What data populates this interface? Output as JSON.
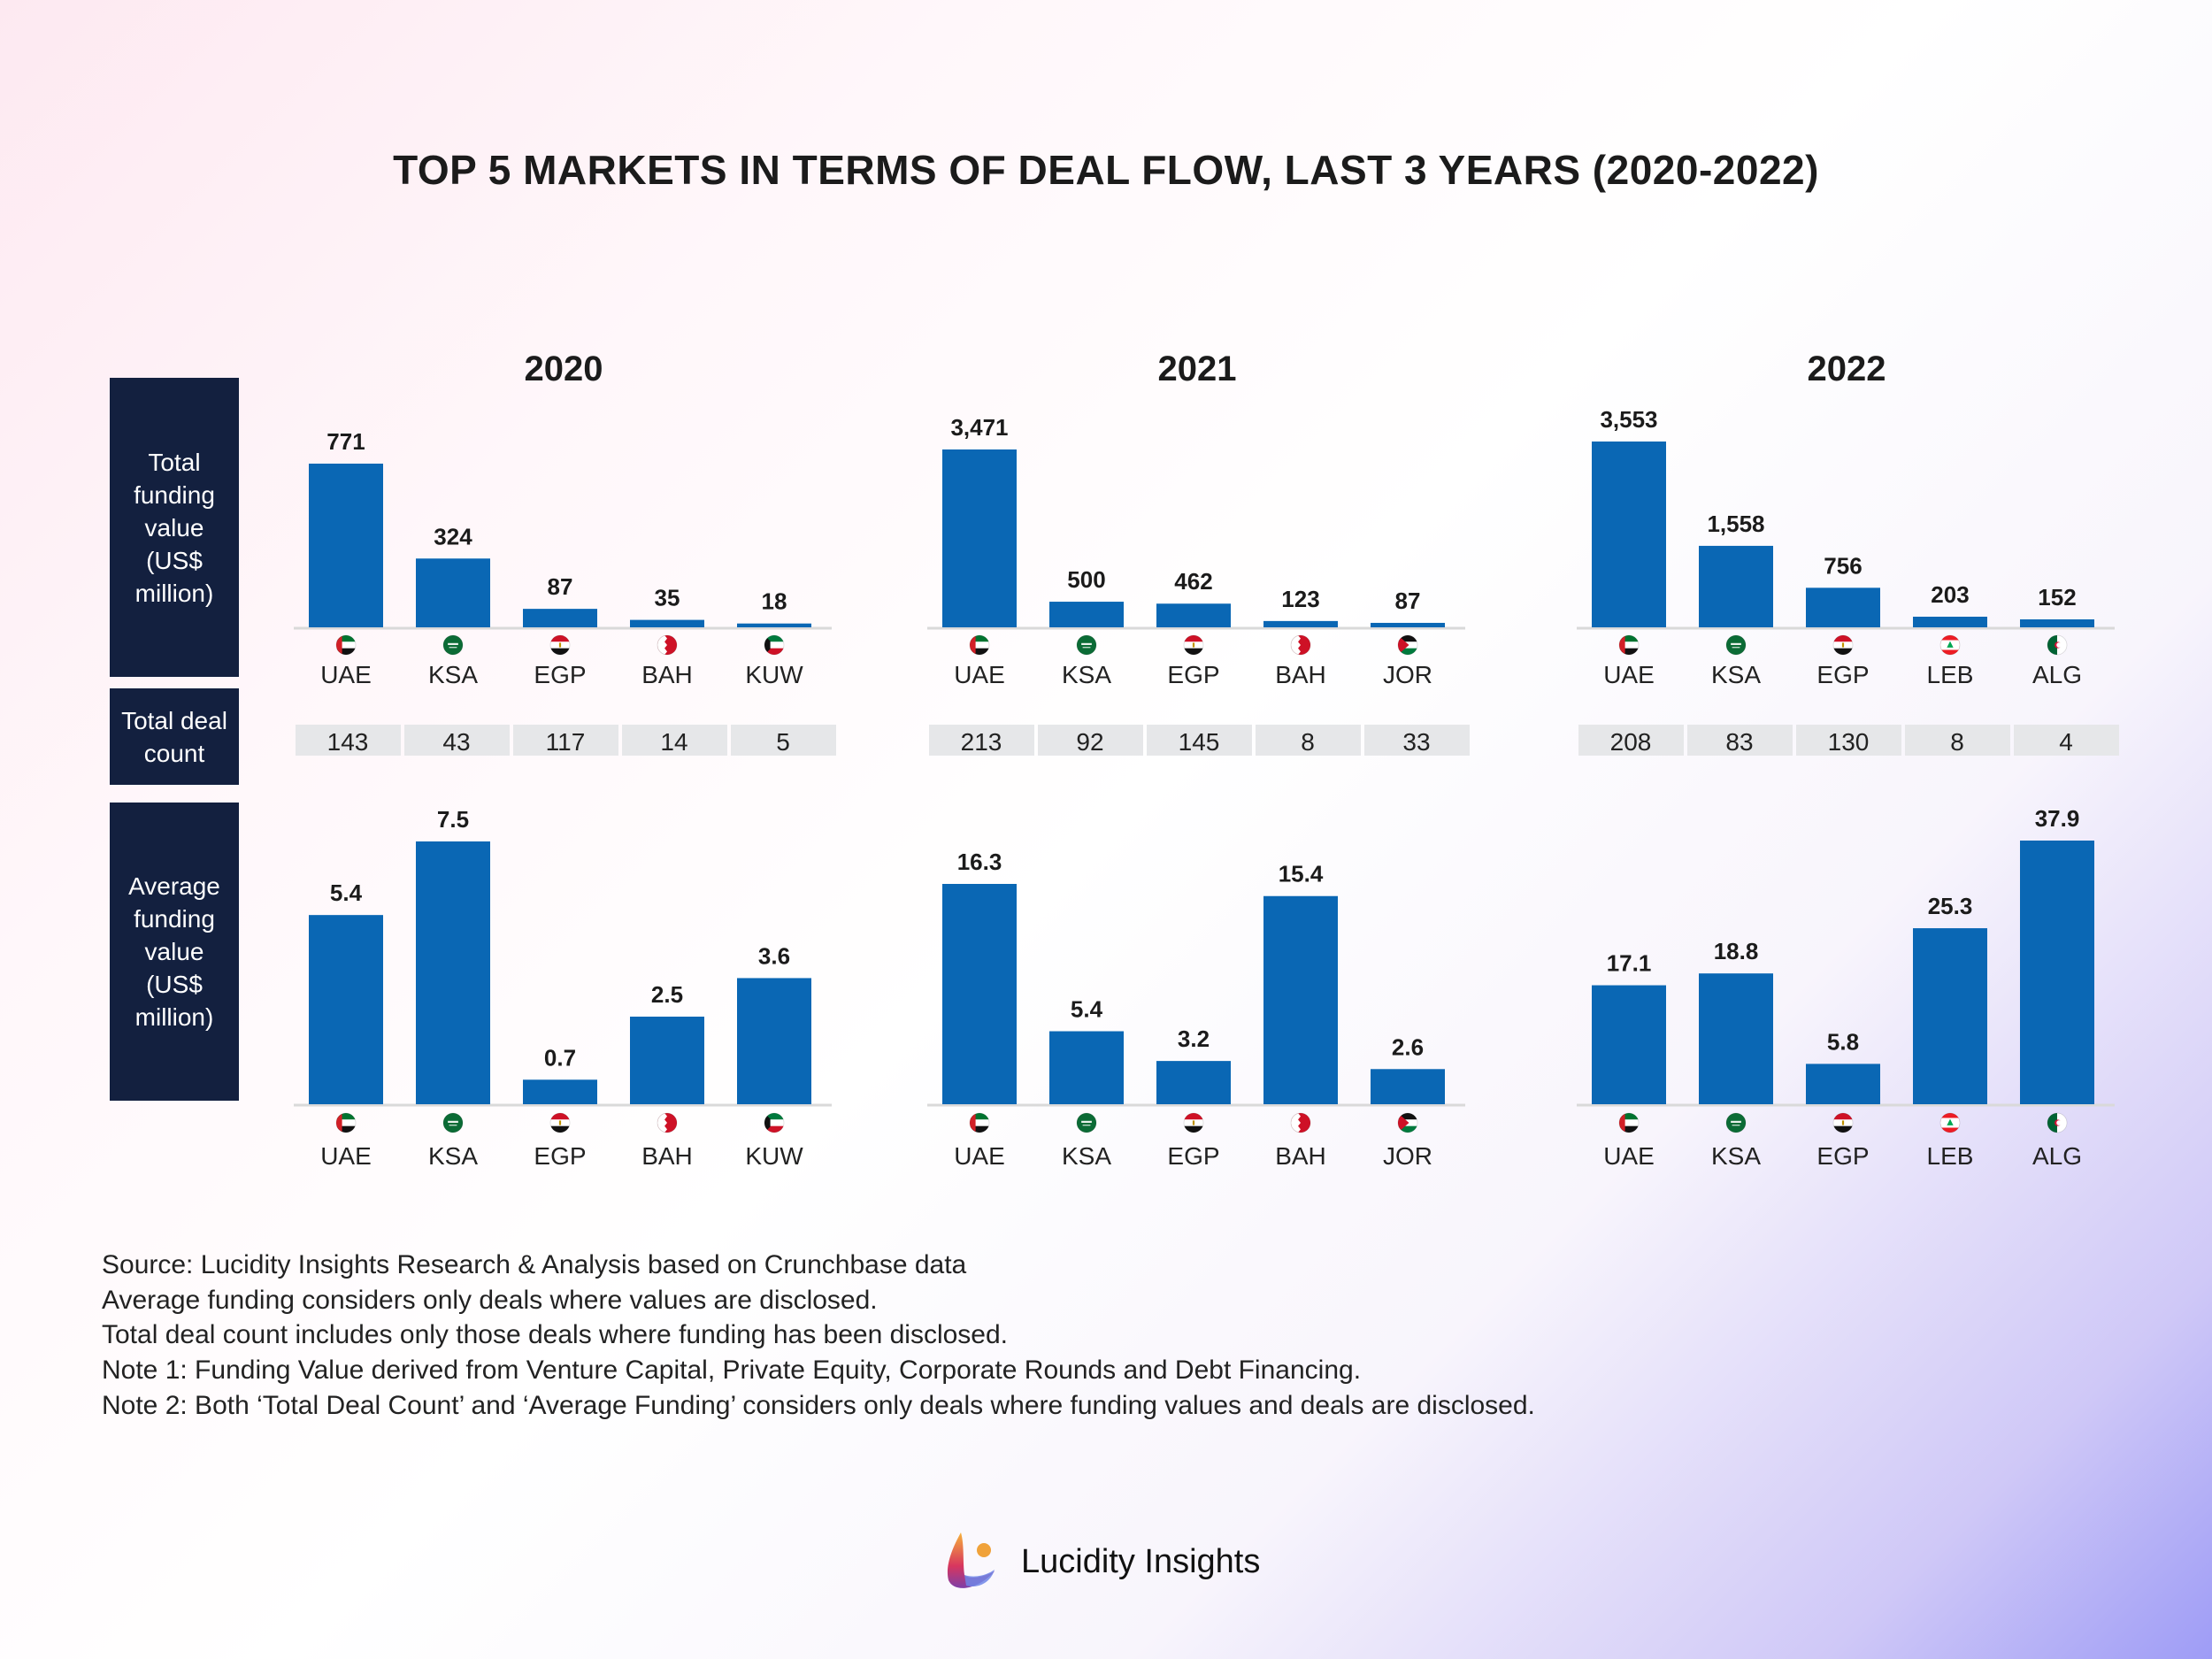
{
  "title": "TOP 5 MARKETS IN TERMS OF DEAL FLOW, LAST 3 YEARS (2020-2022)",
  "row_labels": {
    "total_funding": "Total funding value (US$ million)",
    "deal_count": "Total deal count",
    "average_funding": "Average funding value (US$ million)"
  },
  "chart_data": [
    {
      "type": "bar",
      "title": "2020",
      "categories": [
        "UAE",
        "KSA",
        "EGP",
        "BAH",
        "KUW"
      ],
      "total_funding": [
        771,
        324,
        87,
        35,
        18
      ],
      "deal_count": [
        143,
        43,
        117,
        14,
        5
      ],
      "average_funding": [
        5.4,
        7.5,
        0.7,
        2.5,
        3.6
      ]
    },
    {
      "type": "bar",
      "title": "2021",
      "categories": [
        "UAE",
        "KSA",
        "EGP",
        "BAH",
        "JOR"
      ],
      "total_funding": [
        3471,
        500,
        462,
        123,
        87
      ],
      "deal_count": [
        213,
        92,
        145,
        8,
        33
      ],
      "average_funding": [
        16.3,
        5.4,
        3.2,
        15.4,
        2.6
      ]
    },
    {
      "type": "bar",
      "title": "2022",
      "categories": [
        "UAE",
        "KSA",
        "EGP",
        "LEB",
        "ALG"
      ],
      "total_funding": [
        3553,
        1558,
        756,
        203,
        152
      ],
      "deal_count": [
        208,
        83,
        130,
        8,
        4
      ],
      "average_funding": [
        17.1,
        18.8,
        5.8,
        25.3,
        37.9
      ]
    }
  ],
  "colors": {
    "bar": "#0a67b4",
    "label_box": "#13203f",
    "count_cell": "#e6e7e9"
  },
  "notes": [
    "Source: Lucidity Insights Research & Analysis based on Crunchbase data",
    "Average funding considers only deals where values are disclosed.",
    "Total deal count includes only those deals where funding has been disclosed.",
    "Note 1: Funding Value derived from Venture Capital, Private Equity, Corporate Rounds and Debt Financing.",
    "Note 2: Both ‘Total Deal Count’ and ‘Average Funding’ considers only deals where funding values and deals are disclosed."
  ],
  "brand": "Lucidity Insights"
}
